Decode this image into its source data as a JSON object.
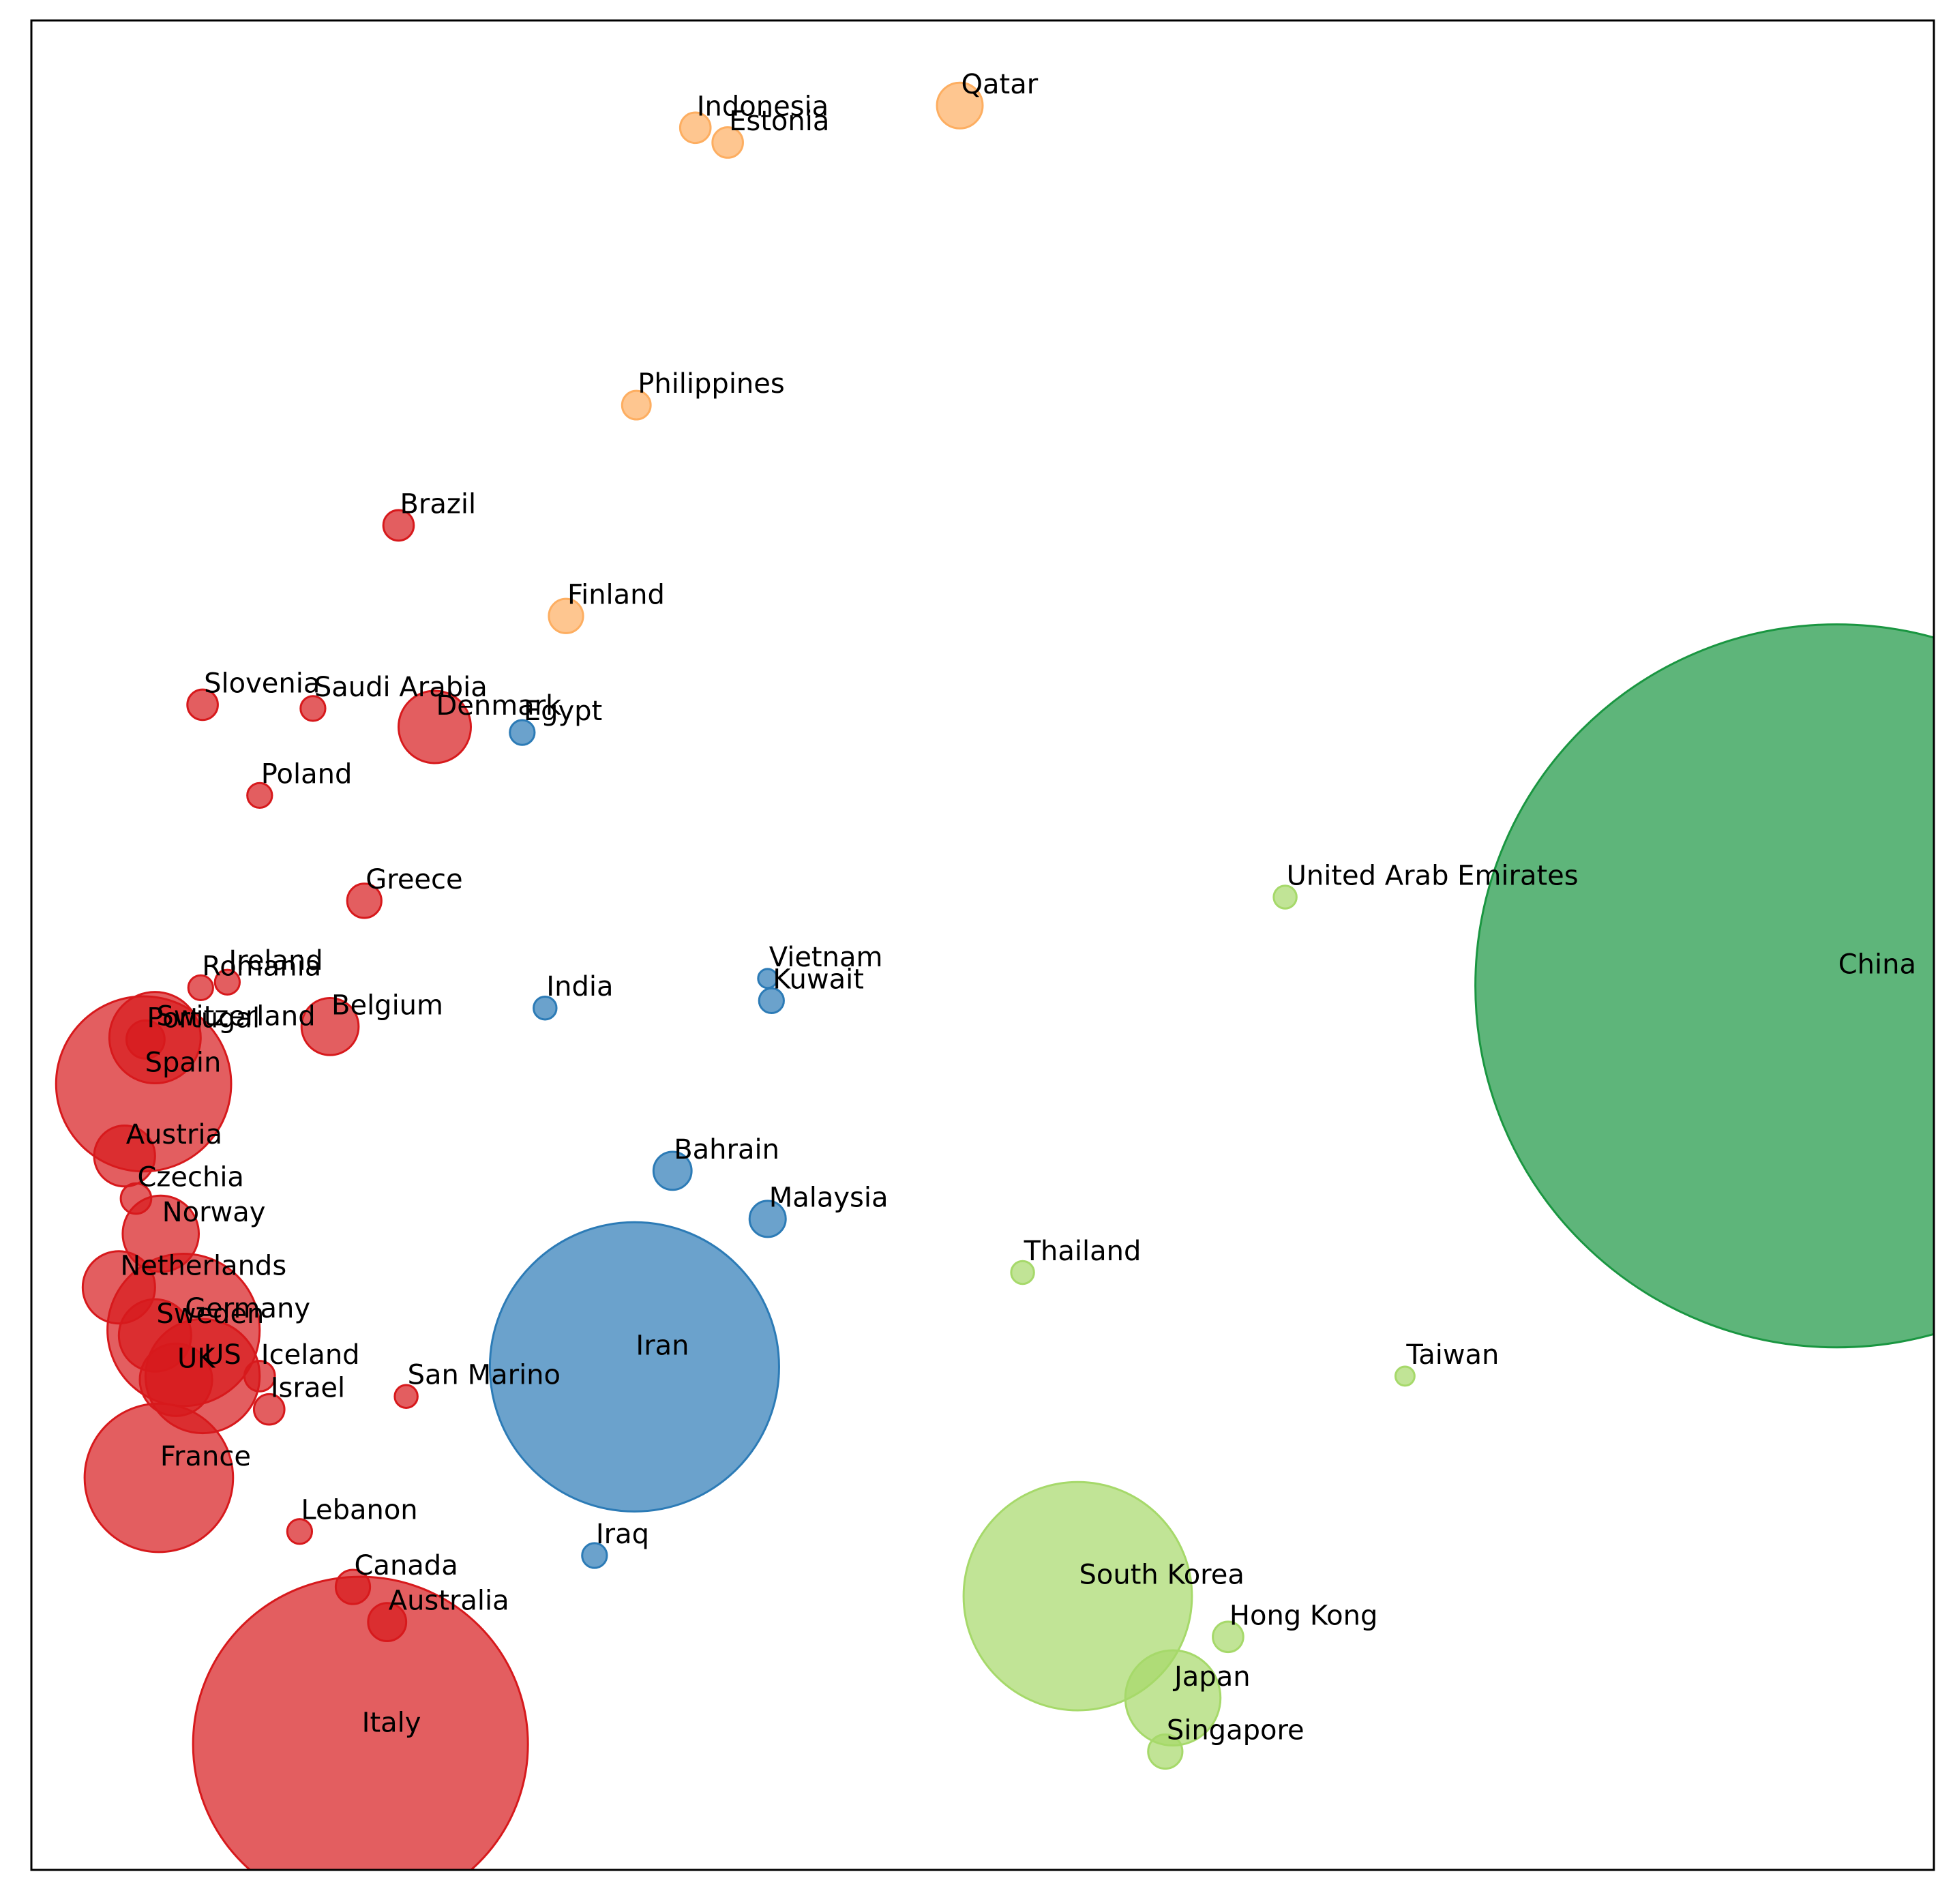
{
  "chart_data": {
    "type": "scatter",
    "title": "",
    "xlabel": "",
    "ylabel": "",
    "axes_ticks": "none",
    "grid": false,
    "legend": "none",
    "xlim": [
      0,
      100
    ],
    "ylim": [
      0,
      100
    ],
    "cluster_colors": {
      "orange": "#fdae61",
      "red": "#d7191c",
      "blue": "#2c7bb6",
      "lightgreen": "#a6d96a",
      "green": "#1a9641"
    },
    "points": [
      {
        "name": "Indonesia",
        "x": 34.9,
        "y": 5.8,
        "r": 0.8,
        "cluster": "orange"
      },
      {
        "name": "Estonia",
        "x": 36.6,
        "y": 6.6,
        "r": 0.8,
        "cluster": "orange"
      },
      {
        "name": "Qatar",
        "x": 48.8,
        "y": 4.6,
        "r": 1.2,
        "cluster": "orange"
      },
      {
        "name": "Philippines",
        "x": 31.8,
        "y": 20.8,
        "r": 0.75,
        "cluster": "orange"
      },
      {
        "name": "Finland",
        "x": 28.1,
        "y": 32.2,
        "r": 0.9,
        "cluster": "orange"
      },
      {
        "name": "Brazil",
        "x": 19.3,
        "y": 27.3,
        "r": 0.8,
        "cluster": "red"
      },
      {
        "name": "Slovenia",
        "x": 9.0,
        "y": 37.0,
        "r": 0.8,
        "cluster": "red"
      },
      {
        "name": "Saudi Arabia",
        "x": 14.8,
        "y": 37.2,
        "r": 0.65,
        "cluster": "red"
      },
      {
        "name": "Denmark",
        "x": 21.2,
        "y": 38.2,
        "r": 1.9,
        "cluster": "red"
      },
      {
        "name": "Poland",
        "x": 12.0,
        "y": 41.9,
        "r": 0.65,
        "cluster": "red"
      },
      {
        "name": "Greece",
        "x": 17.5,
        "y": 47.6,
        "r": 0.9,
        "cluster": "red"
      },
      {
        "name": "Ireland",
        "x": 10.3,
        "y": 52.0,
        "r": 0.65,
        "cluster": "red"
      },
      {
        "name": "Romania",
        "x": 8.9,
        "y": 52.3,
        "r": 0.65,
        "cluster": "red"
      },
      {
        "name": "Belgium",
        "x": 15.7,
        "y": 54.4,
        "r": 1.5,
        "cluster": "red"
      },
      {
        "name": "Switzerland",
        "x": 6.5,
        "y": 55.0,
        "r": 2.4,
        "cluster": "red"
      },
      {
        "name": "Portugal",
        "x": 6.0,
        "y": 55.1,
        "r": 1.0,
        "cluster": "red"
      },
      {
        "name": "Spain",
        "x": 5.9,
        "y": 57.5,
        "r": 4.6,
        "cluster": "red"
      },
      {
        "name": "Austria",
        "x": 4.9,
        "y": 61.4,
        "r": 1.6,
        "cluster": "red"
      },
      {
        "name": "Czechia",
        "x": 5.5,
        "y": 63.7,
        "r": 0.8,
        "cluster": "red"
      },
      {
        "name": "Norway",
        "x": 6.8,
        "y": 65.6,
        "r": 2.0,
        "cluster": "red"
      },
      {
        "name": "Netherlands",
        "x": 4.6,
        "y": 68.5,
        "r": 1.9,
        "cluster": "red"
      },
      {
        "name": "Germany",
        "x": 8.0,
        "y": 70.8,
        "r": 4.0,
        "cluster": "red"
      },
      {
        "name": "Sweden",
        "x": 6.5,
        "y": 71.1,
        "r": 1.9,
        "cluster": "red"
      },
      {
        "name": "US",
        "x": 9.0,
        "y": 73.3,
        "r": 3.0,
        "cluster": "red"
      },
      {
        "name": "UK",
        "x": 7.6,
        "y": 73.5,
        "r": 1.9,
        "cluster": "red"
      },
      {
        "name": "Iceland",
        "x": 12.0,
        "y": 73.3,
        "r": 0.8,
        "cluster": "red"
      },
      {
        "name": "Israel",
        "x": 12.5,
        "y": 75.1,
        "r": 0.8,
        "cluster": "red"
      },
      {
        "name": "San Marino",
        "x": 19.7,
        "y": 74.4,
        "r": 0.6,
        "cluster": "red"
      },
      {
        "name": "France",
        "x": 6.7,
        "y": 78.8,
        "r": 3.9,
        "cluster": "red"
      },
      {
        "name": "Lebanon",
        "x": 14.1,
        "y": 81.7,
        "r": 0.65,
        "cluster": "red"
      },
      {
        "name": "Canada",
        "x": 16.9,
        "y": 84.7,
        "r": 0.9,
        "cluster": "red"
      },
      {
        "name": "Australia",
        "x": 18.7,
        "y": 86.6,
        "r": 1.0,
        "cluster": "red"
      },
      {
        "name": "Italy",
        "x": 17.3,
        "y": 93.2,
        "r": 8.8,
        "cluster": "red"
      },
      {
        "name": "Egypt",
        "x": 25.8,
        "y": 38.5,
        "r": 0.65,
        "cluster": "blue"
      },
      {
        "name": "Vietnam",
        "x": 38.7,
        "y": 51.8,
        "r": 0.5,
        "cluster": "blue"
      },
      {
        "name": "Kuwait",
        "x": 38.9,
        "y": 53.0,
        "r": 0.65,
        "cluster": "blue"
      },
      {
        "name": "India",
        "x": 27.0,
        "y": 53.4,
        "r": 0.6,
        "cluster": "blue"
      },
      {
        "name": "Bahrain",
        "x": 33.7,
        "y": 62.2,
        "r": 1.0,
        "cluster": "blue"
      },
      {
        "name": "Malaysia",
        "x": 38.7,
        "y": 64.8,
        "r": 0.95,
        "cluster": "blue"
      },
      {
        "name": "Iran",
        "x": 31.7,
        "y": 72.8,
        "r": 7.6,
        "cluster": "blue"
      },
      {
        "name": "Iraq",
        "x": 29.6,
        "y": 83.0,
        "r": 0.65,
        "cluster": "blue"
      },
      {
        "name": "United Arab Emirates",
        "x": 65.9,
        "y": 47.4,
        "r": 0.6,
        "cluster": "lightgreen"
      },
      {
        "name": "Thailand",
        "x": 52.1,
        "y": 67.7,
        "r": 0.6,
        "cluster": "lightgreen"
      },
      {
        "name": "Taiwan",
        "x": 72.2,
        "y": 73.3,
        "r": 0.5,
        "cluster": "lightgreen"
      },
      {
        "name": "South Korea",
        "x": 55.0,
        "y": 85.2,
        "r": 6.0,
        "cluster": "lightgreen"
      },
      {
        "name": "Hong Kong",
        "x": 62.9,
        "y": 87.4,
        "r": 0.8,
        "cluster": "lightgreen"
      },
      {
        "name": "Japan",
        "x": 60.0,
        "y": 90.7,
        "r": 2.5,
        "cluster": "lightgreen"
      },
      {
        "name": "Singapore",
        "x": 59.6,
        "y": 93.6,
        "r": 0.9,
        "cluster": "lightgreen"
      },
      {
        "name": "China",
        "x": 94.9,
        "y": 52.2,
        "r": 19.0,
        "cluster": "green"
      }
    ]
  }
}
